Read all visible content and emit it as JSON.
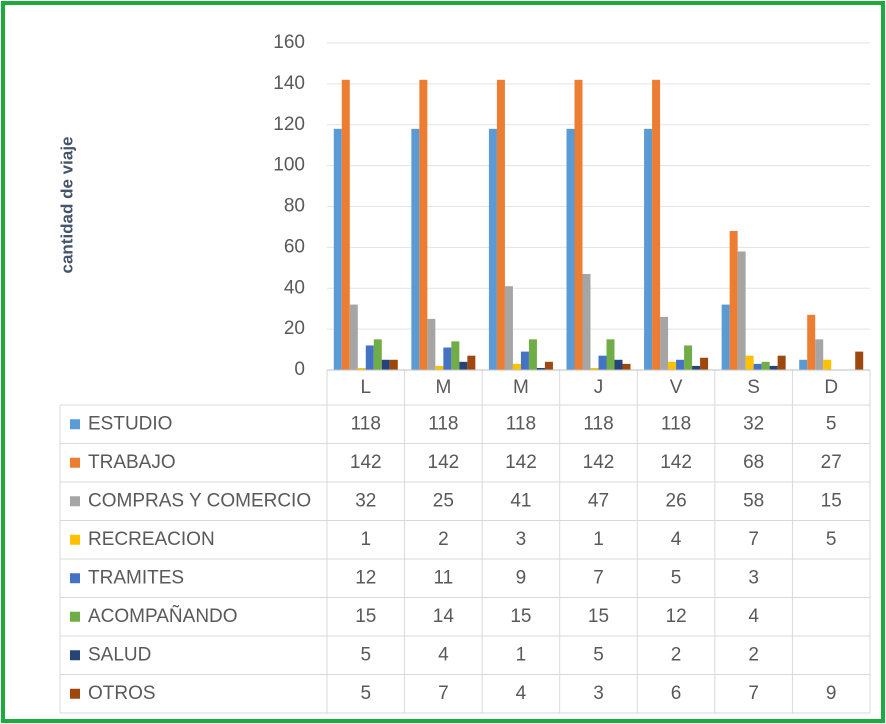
{
  "chart_data": {
    "type": "bar",
    "y_label": "cantidad de viaje",
    "categories": [
      "L",
      "M",
      "M",
      "J",
      "V",
      "S",
      "D"
    ],
    "series": [
      {
        "name": "ESTUDIO",
        "color": "#5b9bd5",
        "values": [
          118,
          118,
          118,
          118,
          118,
          32,
          5
        ]
      },
      {
        "name": "TRABAJO",
        "color": "#ed7d31",
        "values": [
          142,
          142,
          142,
          142,
          142,
          68,
          27
        ]
      },
      {
        "name": "COMPRAS Y COMERCIO",
        "color": "#a5a5a5",
        "values": [
          32,
          25,
          41,
          47,
          26,
          58,
          15
        ]
      },
      {
        "name": "RECREACION",
        "color": "#ffc000",
        "values": [
          1,
          2,
          3,
          1,
          4,
          7,
          5
        ]
      },
      {
        "name": "TRAMITES",
        "color": "#4472c4",
        "values": [
          12,
          11,
          9,
          7,
          5,
          3,
          null
        ]
      },
      {
        "name": "ACOMPAÑANDO",
        "color": "#70ad47",
        "values": [
          15,
          14,
          15,
          15,
          12,
          4,
          null
        ]
      },
      {
        "name": "SALUD",
        "color": "#264478",
        "values": [
          5,
          4,
          1,
          5,
          2,
          2,
          null
        ]
      },
      {
        "name": "OTROS",
        "color": "#9e480e",
        "values": [
          5,
          7,
          4,
          3,
          6,
          7,
          9
        ]
      }
    ],
    "ylim": [
      0,
      160
    ],
    "yticks": [
      0,
      20,
      40,
      60,
      80,
      100,
      120,
      140,
      160
    ],
    "grid": true,
    "legend": "table"
  }
}
